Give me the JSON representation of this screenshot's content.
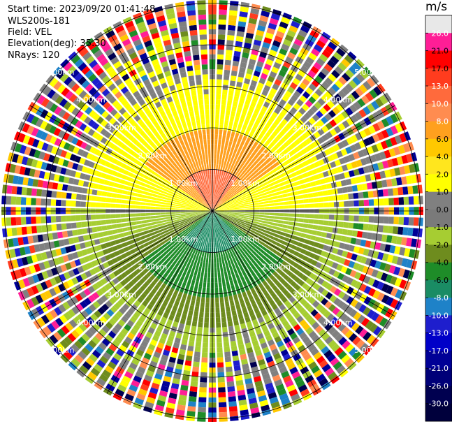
{
  "header": {
    "start_time": "Start time: 2023/09/20 01:41:48",
    "instrument": "WLS200s-181",
    "field": "Field: VEL",
    "elevation": "Elevation(deg): 35.30",
    "nrays": "NRays: 120"
  },
  "chart_data": {
    "type": "heatmap",
    "projection": "polar-ppi",
    "field": "VEL",
    "units": "m/s",
    "n_rays": 120,
    "range_rings_km": [
      1.0,
      2.0,
      3.0,
      4.0,
      5.0
    ],
    "range_labels": [
      "1.00km",
      "2.00km",
      "3.00km",
      "4.00km",
      "5.00km"
    ],
    "spoke_angles_deg": [
      0,
      30,
      60,
      90,
      120,
      150,
      180,
      210,
      240,
      270,
      300,
      330
    ],
    "colorbar": {
      "unit_label": "m/s",
      "tick_labels": [
        "26.0",
        "21.0",
        "17.0",
        "13.0",
        "10.0",
        "8.0",
        "6.0",
        "4.0",
        "2.0",
        "1.0",
        "0.0",
        "-1.0",
        "-2.0",
        "-4.0",
        "-6.0",
        "-8.0",
        "-10.0",
        "-13.0",
        "-17.0",
        "-21.0",
        "-26.0",
        "-30.0"
      ],
      "bins": [
        {
          "color": "#e8e8e8"
        },
        {
          "color": "#ff1e96"
        },
        {
          "color": "#ff0000"
        },
        {
          "color": "#ff3c1e"
        },
        {
          "color": "#ff6a3c"
        },
        {
          "color": "#ff8c50"
        },
        {
          "color": "#ffa01e"
        },
        {
          "color": "#ffc800"
        },
        {
          "color": "#ffe61e"
        },
        {
          "color": "#ffff00"
        },
        {
          "color": "#808080"
        },
        {
          "color": "#7a7a7a"
        },
        {
          "color": "#a6cd32"
        },
        {
          "color": "#6e8c1e"
        },
        {
          "color": "#1e8c28"
        },
        {
          "color": "#1a8c64"
        },
        {
          "color": "#1e82c8"
        },
        {
          "color": "#1e1ecd"
        },
        {
          "color": "#0000c8"
        },
        {
          "color": "#000096"
        },
        {
          "color": "#000078"
        },
        {
          "color": "#000050"
        },
        {
          "color": "#00003c"
        }
      ]
    }
  }
}
